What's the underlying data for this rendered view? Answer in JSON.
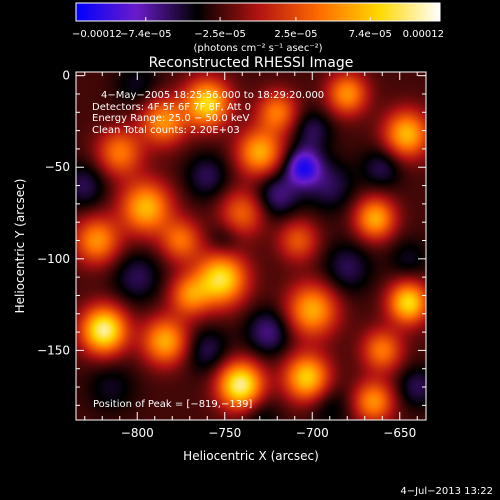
{
  "chart_data": {
    "type": "heatmap",
    "title": "Reconstructed RHESSI Image",
    "xlabel": "Heliocentric X (arcsec)",
    "ylabel": "Heliocentric Y (arcsec)",
    "xlim": [
      -835,
      -635
    ],
    "ylim": [
      -188,
      2
    ],
    "x_ticks": [
      -800,
      -750,
      -700,
      -650
    ],
    "x_tick_labels": [
      "−800",
      "−750",
      "−700",
      "−650"
    ],
    "y_ticks": [
      0,
      -50,
      -100,
      -150
    ],
    "y_tick_labels": [
      "0",
      "−50",
      "−100",
      "−150"
    ],
    "colorbar": {
      "range": [
        -0.00012,
        0.00012
      ],
      "ticks": [
        -0.00012,
        -7.4e-05,
        -2.5e-05,
        2.5e-05,
        7.4e-05,
        0.00012
      ],
      "tick_labels": [
        "−0.00012",
        "−7.4e−05",
        "−2.5e−05",
        "2.5e−05",
        "7.4e−05",
        "0.00012"
      ],
      "unit_label": "(photons cm⁻² s⁻¹ asec⁻²)",
      "colors": [
        "#0000ff",
        "#6a1cc8",
        "#000000",
        "#b01212",
        "#ff6a00",
        "#ffd800",
        "#ffffff"
      ]
    },
    "annotations": [
      "4−May−2005 18:25:56.000 to 18:29:20.000",
      "Detectors: 4F 5F 6F 7F 8F, Att 0",
      "Energy Range: 25.0 − 50.0 keV",
      "Clean     Total counts: 2.20E+03"
    ],
    "peak_label": "Position of Peak = [−819,−139]",
    "peak_position": [
      -819,
      -139
    ],
    "sources": [
      {
        "x": -819,
        "y": -139,
        "value": 0.00012,
        "size": 9
      },
      {
        "x": -741,
        "y": -169,
        "value": 0.00012,
        "size": 9
      },
      {
        "x": -752,
        "y": -111,
        "value": 0.000105,
        "size": 10
      },
      {
        "x": -760,
        "y": -15,
        "value": 0.0001,
        "size": 9
      },
      {
        "x": -703,
        "y": -165,
        "value": 9.5e-05,
        "size": 9
      },
      {
        "x": -645,
        "y": -124,
        "value": 0.0001,
        "size": 8
      },
      {
        "x": -646,
        "y": -32,
        "value": 8.5e-05,
        "size": 9
      },
      {
        "x": -664,
        "y": -78,
        "value": 8e-05,
        "size": 8
      },
      {
        "x": -700,
        "y": -128,
        "value": 8e-05,
        "size": 10
      },
      {
        "x": -730,
        "y": -42,
        "value": 8e-05,
        "size": 9
      },
      {
        "x": -795,
        "y": -72,
        "value": 8.5e-05,
        "size": 10
      },
      {
        "x": -823,
        "y": -90,
        "value": 7e-05,
        "size": 9
      },
      {
        "x": -784,
        "y": -145,
        "value": 8e-05,
        "size": 9
      },
      {
        "x": -785,
        "y": -25,
        "value": 7e-05,
        "size": 9
      },
      {
        "x": -810,
        "y": -42,
        "value": 6e-05,
        "size": 9
      },
      {
        "x": -720,
        "y": -20,
        "value": 6e-05,
        "size": 8
      },
      {
        "x": -680,
        "y": -10,
        "value": 7e-05,
        "size": 8
      },
      {
        "x": -665,
        "y": -178,
        "value": 7e-05,
        "size": 8
      },
      {
        "x": -770,
        "y": -120,
        "value": 6e-05,
        "size": 8
      },
      {
        "x": -660,
        "y": -150,
        "value": 6e-05,
        "size": 8
      },
      {
        "x": -740,
        "y": -75,
        "value": 5e-05,
        "size": 9
      },
      {
        "x": -775,
        "y": -90,
        "value": 5.5e-05,
        "size": 8
      },
      {
        "x": -708,
        "y": -90,
        "value": 4.5e-05,
        "size": 8
      },
      {
        "x": -690,
        "y": -60,
        "value": -4e-05,
        "size": 10
      },
      {
        "x": -705,
        "y": -50,
        "value": -8.5e-05,
        "size": 7
      },
      {
        "x": -720,
        "y": -65,
        "value": -5e-05,
        "size": 9
      },
      {
        "x": -680,
        "y": -105,
        "value": -4e-05,
        "size": 10
      },
      {
        "x": -800,
        "y": -110,
        "value": -4e-05,
        "size": 10
      },
      {
        "x": -830,
        "y": -60,
        "value": -4e-05,
        "size": 9
      },
      {
        "x": -815,
        "y": -170,
        "value": -3e-05,
        "size": 10
      },
      {
        "x": -760,
        "y": -150,
        "value": -4e-05,
        "size": 9
      },
      {
        "x": -725,
        "y": -140,
        "value": -5e-05,
        "size": 9
      },
      {
        "x": -690,
        "y": -180,
        "value": -3e-05,
        "size": 9
      },
      {
        "x": -645,
        "y": -100,
        "value": -3e-05,
        "size": 8
      },
      {
        "x": -640,
        "y": -170,
        "value": -4e-05,
        "size": 8
      },
      {
        "x": -750,
        "y": -90,
        "value": -3e-05,
        "size": 7
      },
      {
        "x": -760,
        "y": -55,
        "value": -4e-05,
        "size": 9
      },
      {
        "x": -800,
        "y": -5,
        "value": -3e-05,
        "size": 9
      },
      {
        "x": -700,
        "y": -30,
        "value": -4e-05,
        "size": 8
      },
      {
        "x": -660,
        "y": -50,
        "value": -4e-05,
        "size": 8
      },
      {
        "x": -730,
        "y": -185,
        "value": -3e-05,
        "size": 8
      }
    ]
  },
  "footer": {
    "date": "4−Jul−2013 13:22"
  }
}
